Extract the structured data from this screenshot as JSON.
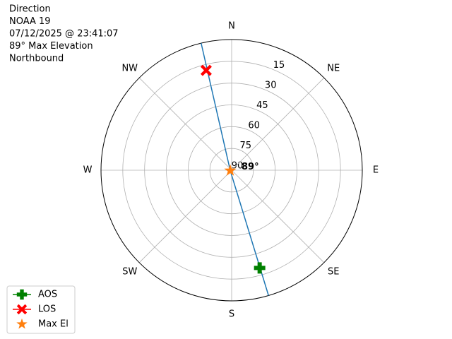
{
  "chart_data": {
    "type": "polar",
    "title_lines": [
      "Direction",
      "NOAA 19",
      "07/12/2025 @ 23:41:07",
      "89° Max Elevation",
      "Northbound"
    ],
    "rlim": [
      90,
      0
    ],
    "rticks": [
      15,
      30,
      45,
      60,
      75,
      90
    ],
    "thetaticks": [
      {
        "value": 0,
        "label": "N"
      },
      {
        "value": 45,
        "label": "NE"
      },
      {
        "value": 90,
        "label": "E"
      },
      {
        "value": 135,
        "label": "SE"
      },
      {
        "value": 180,
        "label": "S"
      },
      {
        "value": 225,
        "label": "SW"
      },
      {
        "value": 270,
        "label": "W"
      },
      {
        "value": 315,
        "label": "NW"
      }
    ],
    "grid": true,
    "legend": "lower left",
    "series": [
      {
        "color": "#1f77b4",
        "marker": "line",
        "az": [
          346.5,
          254,
          163.6
        ],
        "el": [
          0,
          89,
          0
        ]
      },
      {
        "name": "AOS",
        "color": "#008000",
        "marker": "plus",
        "az": [
          164
        ],
        "el": [
          20
        ]
      },
      {
        "name": "LOS",
        "color": "#ff0000",
        "marker": "x",
        "az": [
          345.7
        ],
        "el": [
          19
        ]
      },
      {
        "name": "Max El",
        "color": "#ff7f0e",
        "marker": "star",
        "az": [
          254
        ],
        "el": [
          89
        ],
        "value_labels": [
          "89°"
        ]
      }
    ]
  }
}
